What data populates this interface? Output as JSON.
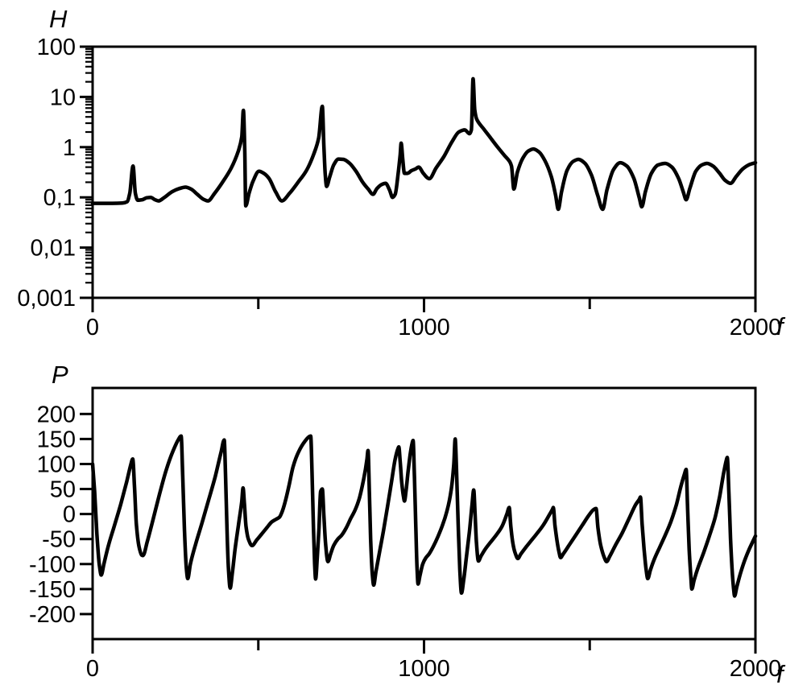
{
  "colors": {
    "ink": "#000000",
    "background": "#ffffff"
  },
  "chart_data": [
    {
      "type": "line",
      "name": "magnitude-response",
      "title": "",
      "ylabel": "H",
      "xlabel": "f",
      "y_scale": "log",
      "xlim": [
        0,
        2000
      ],
      "ylim": [
        0.001,
        100
      ],
      "grid": false,
      "legend": "none",
      "x_ticks": [
        {
          "value": 0,
          "label": "0"
        },
        {
          "value": 500,
          "label": ""
        },
        {
          "value": 1000,
          "label": "1000"
        },
        {
          "value": 1500,
          "label": ""
        },
        {
          "value": 2000,
          "label": "2000"
        }
      ],
      "y_ticks": [
        {
          "value": 100,
          "label": "100"
        },
        {
          "value": 10,
          "label": "10"
        },
        {
          "value": 1,
          "label": "1"
        },
        {
          "value": 0.1,
          "label": "0,1"
        },
        {
          "value": 0.01,
          "label": "0,01"
        },
        {
          "value": 0.001,
          "label": "0,001"
        }
      ],
      "points": [
        [
          0,
          0.076
        ],
        [
          30,
          0.076
        ],
        [
          60,
          0.076
        ],
        [
          90,
          0.077
        ],
        [
          104,
          0.082
        ],
        [
          112,
          0.12
        ],
        [
          122,
          0.42
        ],
        [
          129,
          0.12
        ],
        [
          136,
          0.088
        ],
        [
          150,
          0.09
        ],
        [
          163,
          0.098
        ],
        [
          175,
          0.1
        ],
        [
          188,
          0.09
        ],
        [
          199,
          0.085
        ],
        [
          215,
          0.098
        ],
        [
          240,
          0.13
        ],
        [
          262,
          0.15
        ],
        [
          280,
          0.16
        ],
        [
          298,
          0.145
        ],
        [
          316,
          0.115
        ],
        [
          334,
          0.092
        ],
        [
          348,
          0.085
        ],
        [
          368,
          0.12
        ],
        [
          392,
          0.2
        ],
        [
          418,
          0.38
        ],
        [
          440,
          0.85
        ],
        [
          450,
          1.6
        ],
        [
          455,
          5.4
        ],
        [
          459,
          0.9
        ],
        [
          462,
          0.068
        ],
        [
          472,
          0.12
        ],
        [
          484,
          0.21
        ],
        [
          502,
          0.33
        ],
        [
          517,
          0.3
        ],
        [
          532,
          0.24
        ],
        [
          552,
          0.13
        ],
        [
          571,
          0.085
        ],
        [
          594,
          0.12
        ],
        [
          620,
          0.2
        ],
        [
          646,
          0.35
        ],
        [
          668,
          0.75
        ],
        [
          682,
          1.5
        ],
        [
          693,
          6.5
        ],
        [
          698,
          1.0
        ],
        [
          702,
          0.28
        ],
        [
          706,
          0.165
        ],
        [
          715,
          0.25
        ],
        [
          728,
          0.45
        ],
        [
          742,
          0.58
        ],
        [
          757,
          0.57
        ],
        [
          775,
          0.48
        ],
        [
          795,
          0.33
        ],
        [
          815,
          0.2
        ],
        [
          832,
          0.145
        ],
        [
          846,
          0.115
        ],
        [
          858,
          0.15
        ],
        [
          872,
          0.18
        ],
        [
          884,
          0.19
        ],
        [
          896,
          0.14
        ],
        [
          905,
          0.1
        ],
        [
          913,
          0.115
        ],
        [
          922,
          0.3
        ],
        [
          928,
          0.7
        ],
        [
          931,
          1.2
        ],
        [
          936,
          0.55
        ],
        [
          941,
          0.3
        ],
        [
          950,
          0.3
        ],
        [
          962,
          0.34
        ],
        [
          975,
          0.37
        ],
        [
          984,
          0.4
        ],
        [
          998,
          0.3
        ],
        [
          1016,
          0.235
        ],
        [
          1036,
          0.38
        ],
        [
          1060,
          0.65
        ],
        [
          1085,
          1.3
        ],
        [
          1105,
          2.0
        ],
        [
          1123,
          2.2
        ],
        [
          1137,
          1.85
        ],
        [
          1143,
          2.2
        ],
        [
          1148,
          22.9
        ],
        [
          1153,
          5.5
        ],
        [
          1159,
          3.6
        ],
        [
          1180,
          2.3
        ],
        [
          1200,
          1.55
        ],
        [
          1222,
          1.0
        ],
        [
          1243,
          0.68
        ],
        [
          1258,
          0.52
        ],
        [
          1264,
          0.42
        ],
        [
          1271,
          0.146
        ],
        [
          1282,
          0.32
        ],
        [
          1298,
          0.6
        ],
        [
          1314,
          0.83
        ],
        [
          1330,
          0.92
        ],
        [
          1347,
          0.8
        ],
        [
          1364,
          0.55
        ],
        [
          1384,
          0.26
        ],
        [
          1397,
          0.11
        ],
        [
          1405,
          0.058
        ],
        [
          1415,
          0.13
        ],
        [
          1432,
          0.35
        ],
        [
          1450,
          0.52
        ],
        [
          1466,
          0.57
        ],
        [
          1485,
          0.48
        ],
        [
          1505,
          0.28
        ],
        [
          1524,
          0.11
        ],
        [
          1539,
          0.058
        ],
        [
          1552,
          0.14
        ],
        [
          1572,
          0.36
        ],
        [
          1592,
          0.49
        ],
        [
          1612,
          0.42
        ],
        [
          1633,
          0.24
        ],
        [
          1650,
          0.095
        ],
        [
          1657,
          0.065
        ],
        [
          1668,
          0.13
        ],
        [
          1686,
          0.3
        ],
        [
          1706,
          0.44
        ],
        [
          1728,
          0.475
        ],
        [
          1748,
          0.4
        ],
        [
          1768,
          0.24
        ],
        [
          1782,
          0.13
        ],
        [
          1791,
          0.09
        ],
        [
          1802,
          0.15
        ],
        [
          1820,
          0.33
        ],
        [
          1838,
          0.44
        ],
        [
          1854,
          0.475
        ],
        [
          1872,
          0.42
        ],
        [
          1892,
          0.3
        ],
        [
          1908,
          0.22
        ],
        [
          1925,
          0.19
        ],
        [
          1942,
          0.26
        ],
        [
          1962,
          0.37
        ],
        [
          1982,
          0.45
        ],
        [
          2000,
          0.49
        ]
      ]
    },
    {
      "type": "line",
      "name": "phase-response",
      "title": "",
      "ylabel": "P",
      "xlabel": "f",
      "y_scale": "linear",
      "xlim": [
        0,
        2000
      ],
      "ylim": [
        -250,
        252
      ],
      "grid": false,
      "legend": "none",
      "x_ticks": [
        {
          "value": 0,
          "label": "0"
        },
        {
          "value": 500,
          "label": ""
        },
        {
          "value": 1000,
          "label": "1000"
        },
        {
          "value": 1500,
          "label": ""
        },
        {
          "value": 2000,
          "label": "2000"
        }
      ],
      "y_ticks": [
        {
          "value": 200,
          "label": "200"
        },
        {
          "value": 150,
          "label": "150"
        },
        {
          "value": 100,
          "label": "100"
        },
        {
          "value": 50,
          "label": "50"
        },
        {
          "value": 0,
          "label": "0"
        },
        {
          "value": -50,
          "label": "-50"
        },
        {
          "value": -100,
          "label": "-100"
        },
        {
          "value": -150,
          "label": "-150"
        },
        {
          "value": -200,
          "label": "-200"
        }
      ],
      "points": [
        [
          0,
          100
        ],
        [
          6,
          45
        ],
        [
          13,
          -40
        ],
        [
          20,
          -100
        ],
        [
          26,
          -122
        ],
        [
          34,
          -100
        ],
        [
          48,
          -62
        ],
        [
          65,
          -25
        ],
        [
          85,
          20
        ],
        [
          103,
          65
        ],
        [
          115,
          98
        ],
        [
          121,
          110
        ],
        [
          126,
          60
        ],
        [
          132,
          -20
        ],
        [
          140,
          -65
        ],
        [
          148,
          -82
        ],
        [
          152,
          -83
        ],
        [
          165,
          -55
        ],
        [
          182,
          -12
        ],
        [
          202,
          40
        ],
        [
          222,
          88
        ],
        [
          242,
          125
        ],
        [
          258,
          148
        ],
        [
          267,
          156
        ],
        [
          272,
          75
        ],
        [
          277,
          -30
        ],
        [
          283,
          -110
        ],
        [
          287,
          -129
        ],
        [
          295,
          -100
        ],
        [
          310,
          -62
        ],
        [
          330,
          -18
        ],
        [
          350,
          28
        ],
        [
          370,
          75
        ],
        [
          388,
          125
        ],
        [
          397,
          148
        ],
        [
          401,
          80
        ],
        [
          405,
          -20
        ],
        [
          410,
          -110
        ],
        [
          415,
          -148
        ],
        [
          422,
          -115
        ],
        [
          430,
          -70
        ],
        [
          440,
          -22
        ],
        [
          450,
          25
        ],
        [
          454,
          52
        ],
        [
          458,
          20
        ],
        [
          463,
          -25
        ],
        [
          470,
          -50
        ],
        [
          481,
          -63
        ],
        [
          495,
          -52
        ],
        [
          510,
          -40
        ],
        [
          525,
          -28
        ],
        [
          540,
          -16
        ],
        [
          552,
          -11
        ],
        [
          564,
          -6
        ],
        [
          572,
          5
        ],
        [
          580,
          22
        ],
        [
          592,
          55
        ],
        [
          605,
          95
        ],
        [
          622,
          125
        ],
        [
          640,
          145
        ],
        [
          652,
          154
        ],
        [
          658,
          156
        ],
        [
          662,
          85
        ],
        [
          666,
          -20
        ],
        [
          670,
          -100
        ],
        [
          673,
          -130
        ],
        [
          678,
          -85
        ],
        [
          683,
          -28
        ],
        [
          688,
          45
        ],
        [
          693,
          50
        ],
        [
          698,
          -5
        ],
        [
          703,
          -60
        ],
        [
          710,
          -95
        ],
        [
          718,
          -80
        ],
        [
          728,
          -62
        ],
        [
          740,
          -50
        ],
        [
          752,
          -42
        ],
        [
          765,
          -28
        ],
        [
          778,
          -10
        ],
        [
          792,
          8
        ],
        [
          805,
          32
        ],
        [
          818,
          70
        ],
        [
          828,
          110
        ],
        [
          831,
          127
        ],
        [
          835,
          45
        ],
        [
          839,
          -50
        ],
        [
          844,
          -120
        ],
        [
          848,
          -142
        ],
        [
          855,
          -115
        ],
        [
          866,
          -75
        ],
        [
          878,
          -32
        ],
        [
          890,
          15
        ],
        [
          902,
          65
        ],
        [
          913,
          110
        ],
        [
          921,
          130
        ],
        [
          924,
          134
        ],
        [
          928,
          105
        ],
        [
          933,
          62
        ],
        [
          938,
          35
        ],
        [
          941,
          26
        ],
        [
          946,
          48
        ],
        [
          952,
          85
        ],
        [
          958,
          118
        ],
        [
          963,
          138
        ],
        [
          967,
          147
        ],
        [
          971,
          75
        ],
        [
          975,
          -20
        ],
        [
          979,
          -110
        ],
        [
          982,
          -140
        ],
        [
          988,
          -122
        ],
        [
          996,
          -100
        ],
        [
          1005,
          -88
        ],
        [
          1015,
          -80
        ],
        [
          1028,
          -65
        ],
        [
          1042,
          -45
        ],
        [
          1056,
          -22
        ],
        [
          1070,
          8
        ],
        [
          1082,
          48
        ],
        [
          1090,
          100
        ],
        [
          1094,
          150
        ],
        [
          1098,
          90
        ],
        [
          1103,
          -20
        ],
        [
          1108,
          -110
        ],
        [
          1113,
          -158
        ],
        [
          1120,
          -130
        ],
        [
          1128,
          -85
        ],
        [
          1137,
          -35
        ],
        [
          1145,
          20
        ],
        [
          1150,
          48
        ],
        [
          1154,
          0
        ],
        [
          1158,
          -55
        ],
        [
          1164,
          -94
        ],
        [
          1172,
          -84
        ],
        [
          1185,
          -70
        ],
        [
          1200,
          -57
        ],
        [
          1218,
          -42
        ],
        [
          1235,
          -25
        ],
        [
          1250,
          0
        ],
        [
          1257,
          13
        ],
        [
          1262,
          -25
        ],
        [
          1268,
          -58
        ],
        [
          1275,
          -78
        ],
        [
          1283,
          -89
        ],
        [
          1292,
          -80
        ],
        [
          1308,
          -66
        ],
        [
          1325,
          -52
        ],
        [
          1342,
          -38
        ],
        [
          1360,
          -22
        ],
        [
          1377,
          -3
        ],
        [
          1388,
          10
        ],
        [
          1390,
          13
        ],
        [
          1395,
          -22
        ],
        [
          1401,
          -52
        ],
        [
          1407,
          -75
        ],
        [
          1412,
          -87
        ],
        [
          1420,
          -80
        ],
        [
          1438,
          -62
        ],
        [
          1458,
          -42
        ],
        [
          1478,
          -22
        ],
        [
          1498,
          -2
        ],
        [
          1512,
          9
        ],
        [
          1519,
          11
        ],
        [
          1525,
          -28
        ],
        [
          1533,
          -62
        ],
        [
          1543,
          -85
        ],
        [
          1551,
          -95
        ],
        [
          1560,
          -85
        ],
        [
          1578,
          -62
        ],
        [
          1598,
          -38
        ],
        [
          1618,
          -10
        ],
        [
          1638,
          18
        ],
        [
          1650,
          30
        ],
        [
          1653,
          34
        ],
        [
          1658,
          -20
        ],
        [
          1664,
          -70
        ],
        [
          1670,
          -110
        ],
        [
          1675,
          -129
        ],
        [
          1683,
          -112
        ],
        [
          1695,
          -90
        ],
        [
          1710,
          -68
        ],
        [
          1728,
          -42
        ],
        [
          1745,
          -15
        ],
        [
          1762,
          20
        ],
        [
          1775,
          55
        ],
        [
          1786,
          80
        ],
        [
          1791,
          89
        ],
        [
          1795,
          20
        ],
        [
          1800,
          -70
        ],
        [
          1805,
          -125
        ],
        [
          1808,
          -150
        ],
        [
          1815,
          -132
        ],
        [
          1828,
          -105
        ],
        [
          1845,
          -75
        ],
        [
          1862,
          -42
        ],
        [
          1878,
          -8
        ],
        [
          1892,
          35
        ],
        [
          1905,
          85
        ],
        [
          1912,
          107
        ],
        [
          1915,
          113
        ],
        [
          1920,
          40
        ],
        [
          1925,
          -50
        ],
        [
          1930,
          -115
        ],
        [
          1934,
          -148
        ],
        [
          1937,
          -164
        ],
        [
          1944,
          -145
        ],
        [
          1955,
          -118
        ],
        [
          1968,
          -92
        ],
        [
          1980,
          -72
        ],
        [
          1992,
          -55
        ],
        [
          2000,
          -44
        ]
      ]
    }
  ]
}
